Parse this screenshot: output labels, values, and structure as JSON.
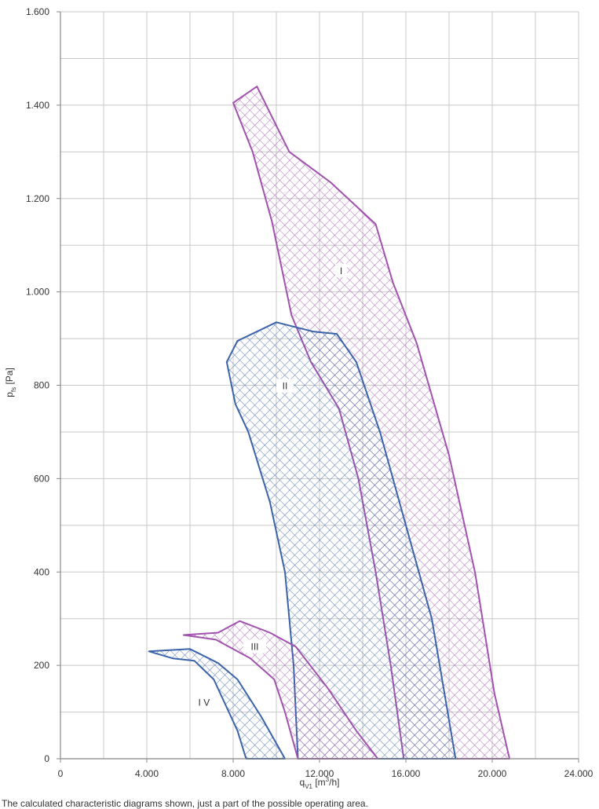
{
  "caption": "The calculated characteristic diagrams shown, just a part of the possible operating area.",
  "colors": {
    "purple": "#a052ad",
    "blue": "#3a63a9",
    "grid": "#c8c8c8",
    "axis": "#888888"
  },
  "chart_data": {
    "type": "area",
    "xlabel": "q",
    "xlabel_sub": "V1",
    "xlabel_unit_pre": " [m",
    "xlabel_unit_sup": "3",
    "xlabel_unit_post": "/h]",
    "ylabel": "p",
    "ylabel_sub": "fs",
    "ylabel_unit": " [Pa]",
    "xlim": [
      0,
      24000
    ],
    "ylim": [
      0,
      1600
    ],
    "x_ticks": [
      0,
      4000,
      8000,
      12000,
      16000,
      20000,
      24000
    ],
    "x_tick_labels": [
      "0",
      "4.000",
      "8.000",
      "12.000",
      "16.000",
      "20.000",
      "24.000"
    ],
    "y_ticks": [
      0,
      200,
      400,
      600,
      800,
      1000,
      1200,
      1400,
      1600
    ],
    "y_tick_labels": [
      "0",
      "200",
      "400",
      "600",
      "800",
      "1.000",
      "1.200",
      "1.400",
      "1.600"
    ],
    "grid": true,
    "regions": [
      {
        "name": "I",
        "color": "purple",
        "label_at": [
          13000,
          1045
        ],
        "points": [
          [
            8000,
            1405
          ],
          [
            9100,
            1440
          ],
          [
            10600,
            1300
          ],
          [
            12500,
            1235
          ],
          [
            14600,
            1145
          ],
          [
            15400,
            1020
          ],
          [
            16500,
            890
          ],
          [
            18000,
            650
          ],
          [
            19200,
            400
          ],
          [
            20100,
            140
          ],
          [
            20800,
            0
          ],
          [
            15900,
            0
          ],
          [
            15300,
            200
          ],
          [
            14600,
            400
          ],
          [
            13800,
            600
          ],
          [
            12900,
            750
          ],
          [
            11600,
            850
          ],
          [
            10700,
            950
          ],
          [
            9800,
            1150
          ],
          [
            8900,
            1300
          ],
          [
            8000,
            1405
          ]
        ]
      },
      {
        "name": "II",
        "color": "blue",
        "label_at": [
          10400,
          798
        ],
        "points": [
          [
            7700,
            850
          ],
          [
            8200,
            895
          ],
          [
            10000,
            935
          ],
          [
            11700,
            915
          ],
          [
            12800,
            910
          ],
          [
            13700,
            850
          ],
          [
            14800,
            700
          ],
          [
            16000,
            500
          ],
          [
            17200,
            300
          ],
          [
            18300,
            0
          ],
          [
            11000,
            0
          ],
          [
            10800,
            200
          ],
          [
            10400,
            400
          ],
          [
            9700,
            550
          ],
          [
            8700,
            700
          ],
          [
            8100,
            760
          ],
          [
            7700,
            850
          ]
        ]
      },
      {
        "name": "III",
        "color": "purple",
        "label_at": [
          9000,
          240
        ],
        "points": [
          [
            5700,
            265
          ],
          [
            7300,
            270
          ],
          [
            8300,
            295
          ],
          [
            9700,
            270
          ],
          [
            10900,
            240
          ],
          [
            12400,
            150
          ],
          [
            13700,
            60
          ],
          [
            14700,
            0
          ],
          [
            11000,
            0
          ],
          [
            10400,
            100
          ],
          [
            9900,
            170
          ],
          [
            8800,
            215
          ],
          [
            7200,
            255
          ],
          [
            5700,
            265
          ]
        ]
      },
      {
        "name": "I V",
        "color": "blue",
        "label_at": [
          6650,
          120
        ],
        "points": [
          [
            4100,
            230
          ],
          [
            6000,
            235
          ],
          [
            7300,
            205
          ],
          [
            8200,
            170
          ],
          [
            9300,
            90
          ],
          [
            10400,
            0
          ],
          [
            8600,
            0
          ],
          [
            8200,
            60
          ],
          [
            7100,
            170
          ],
          [
            6200,
            210
          ],
          [
            5200,
            215
          ],
          [
            4100,
            230
          ]
        ]
      }
    ]
  }
}
